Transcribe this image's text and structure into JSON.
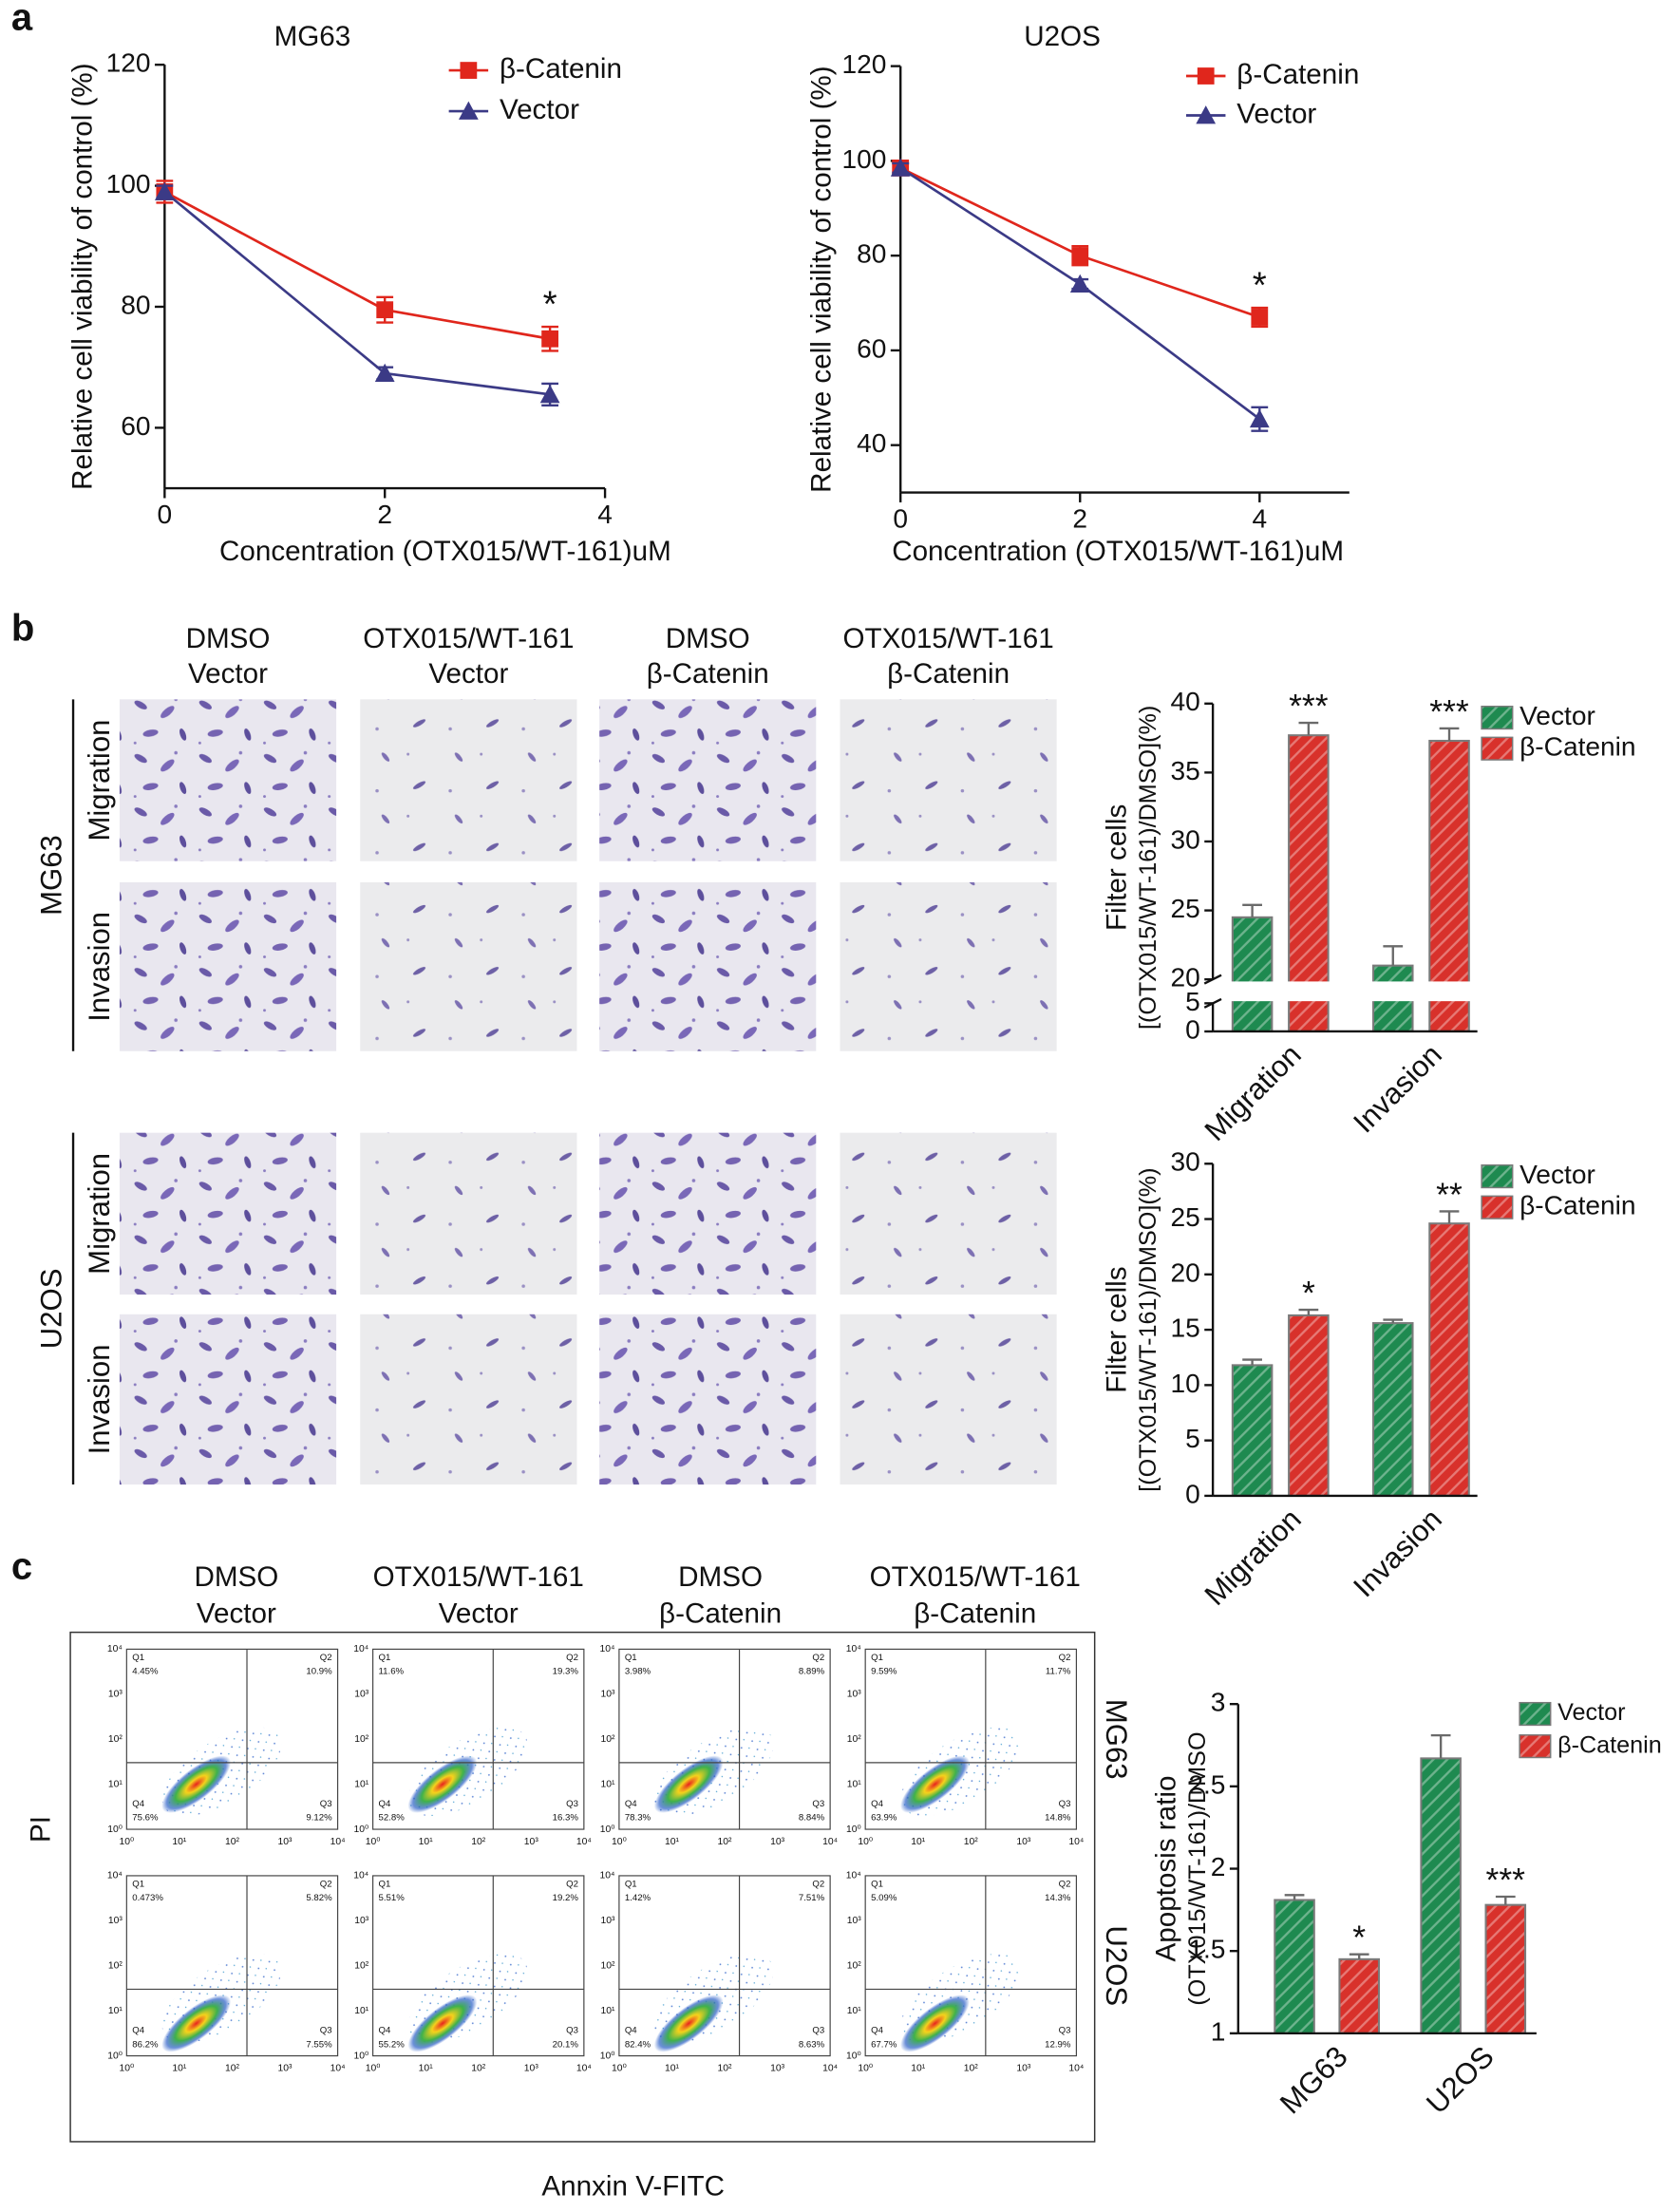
{
  "panel_labels": [
    "a",
    "b",
    "c"
  ],
  "chart_data": [
    {
      "type": "line",
      "title": "MG63",
      "x_label": "Concentration (OTX015/WT-161)uM",
      "y_label": "Relative cell viability of control (%)",
      "x": [
        0,
        2,
        3.5
      ],
      "xlim": [
        0,
        4
      ],
      "xticks": [
        0,
        2,
        4
      ],
      "ylim": [
        50,
        120
      ],
      "yticks": [
        60,
        80,
        100,
        120
      ],
      "legend": "upper right",
      "series": [
        {
          "name": "β-Catenin",
          "color": "#e0261c",
          "marker": "square",
          "values": [
            99,
            79.5,
            74.7
          ],
          "errors": [
            1.8,
            2.1,
            2.0
          ]
        },
        {
          "name": "Vector",
          "color": "#3b3a86",
          "marker": "triangle",
          "values": [
            99,
            69,
            65.5
          ],
          "errors": [
            1.0,
            1.0,
            1.8
          ]
        }
      ],
      "annotations": [
        {
          "text": "*",
          "x": 3.5
        }
      ]
    },
    {
      "type": "line",
      "title": "U2OS",
      "x_label": "Concentration (OTX015/WT-161)uM",
      "y_label": "Relative cell viability of control (%)",
      "x": [
        0,
        2,
        4
      ],
      "xlim": [
        0,
        5
      ],
      "xticks": [
        0,
        2,
        4
      ],
      "ylim": [
        30,
        120
      ],
      "yticks": [
        40,
        60,
        80,
        100,
        120
      ],
      "legend": "upper right",
      "series": [
        {
          "name": "β-Catenin",
          "color": "#e0261c",
          "marker": "square",
          "values": [
            98.5,
            80,
            67
          ],
          "errors": [
            1.0,
            2.0,
            2.0
          ]
        },
        {
          "name": "Vector",
          "color": "#3b3a86",
          "marker": "triangle",
          "values": [
            98.5,
            74,
            45.5
          ],
          "errors": [
            1.0,
            1.0,
            2.5
          ]
        }
      ],
      "annotations": [
        {
          "text": "*",
          "x": 4
        }
      ]
    },
    {
      "type": "bar",
      "y_label": [
        "Filter cells",
        "[(OTX015/WT-161)/DMSO](%)"
      ],
      "categories": [
        "Migration",
        "Invasion"
      ],
      "ylim": [
        0,
        40
      ],
      "y_break": [
        5,
        20
      ],
      "yticks": [
        0,
        5,
        20,
        25,
        30,
        35,
        40
      ],
      "legend": "upper right",
      "series": [
        {
          "name": "Vector",
          "color": "#1e8a50",
          "values": [
            24.5,
            21
          ],
          "errors": [
            0.9,
            1.4
          ]
        },
        {
          "name": "β-Catenin",
          "color": "#d8312b",
          "values": [
            37.7,
            37.3
          ],
          "errors": [
            0.9,
            0.9
          ],
          "annotations": [
            "***",
            "***"
          ]
        }
      ]
    },
    {
      "type": "bar",
      "y_label": [
        "Filter cells",
        "[(OTX015/WT-161)/DMSO](%)"
      ],
      "categories": [
        "Migration",
        "Invasion"
      ],
      "ylim": [
        0,
        30
      ],
      "yticks": [
        0,
        5,
        10,
        15,
        20,
        25,
        30
      ],
      "legend": "upper right",
      "series": [
        {
          "name": "Vector",
          "color": "#1e8a50",
          "values": [
            11.8,
            15.6
          ],
          "errors": [
            0.5,
            0.3
          ]
        },
        {
          "name": "β-Catenin",
          "color": "#d8312b",
          "values": [
            16.3,
            24.6
          ],
          "errors": [
            0.5,
            1.1
          ],
          "annotations": [
            "*",
            "**"
          ]
        }
      ]
    },
    {
      "type": "bar",
      "y_label": [
        "Apoptosis ratio",
        "(OTX015/WT-161)/DMSO"
      ],
      "categories": [
        "MG63",
        "U2OS"
      ],
      "ylim": [
        1,
        3
      ],
      "yticks": [
        1,
        1.5,
        2,
        2.5,
        3
      ],
      "legend": "upper right",
      "series": [
        {
          "name": "Vector",
          "color": "#1e8a50",
          "values": [
            1.81,
            2.67
          ],
          "errors": [
            0.03,
            0.14
          ]
        },
        {
          "name": "β-Catenin",
          "color": "#d8312b",
          "values": [
            1.45,
            1.78
          ],
          "errors": [
            0.03,
            0.05
          ],
          "annotations": [
            "*",
            "***"
          ]
        }
      ]
    }
  ],
  "transwell": {
    "columns": [
      [
        "DMSO",
        "Vector"
      ],
      [
        "OTX015/WT-161",
        "Vector"
      ],
      [
        "DMSO",
        "β-Catenin"
      ],
      [
        "OTX015/WT-161",
        "β-Catenin"
      ]
    ],
    "groups": [
      {
        "name": "MG63",
        "rows": [
          "Migration",
          "Invasion"
        ]
      },
      {
        "name": "U2OS",
        "rows": [
          "Migration",
          "Invasion"
        ]
      }
    ]
  },
  "flow": {
    "columns": [
      [
        "DMSO",
        "Vector"
      ],
      [
        "OTX015/WT-161",
        "Vector"
      ],
      [
        "DMSO",
        "β-Catenin"
      ],
      [
        "OTX015/WT-161",
        "β-Catenin"
      ]
    ],
    "rows": [
      "MG63",
      "U2OS"
    ],
    "y_label": "PI",
    "x_label": "Annxin V-FITC",
    "axis_ticks": [
      "10⁰",
      "10¹",
      "10²",
      "10³",
      "10⁴"
    ],
    "quadrants": [
      "Q1",
      "Q2",
      "Q3",
      "Q4"
    ],
    "plots": [
      [
        [
          "4.45%",
          "10.9%",
          "9.12%",
          "75.6%"
        ],
        [
          "11.6%",
          "19.3%",
          "16.3%",
          "52.8%"
        ],
        [
          "3.98%",
          "8.89%",
          "8.84%",
          "78.3%"
        ],
        [
          "9.59%",
          "11.7%",
          "14.8%",
          "63.9%"
        ]
      ],
      [
        [
          "0.473%",
          "5.82%",
          "7.55%",
          "86.2%"
        ],
        [
          "5.51%",
          "19.2%",
          "20.1%",
          "55.2%"
        ],
        [
          "1.42%",
          "7.51%",
          "8.63%",
          "82.4%"
        ],
        [
          "5.09%",
          "14.3%",
          "12.9%",
          "67.7%"
        ]
      ]
    ]
  }
}
